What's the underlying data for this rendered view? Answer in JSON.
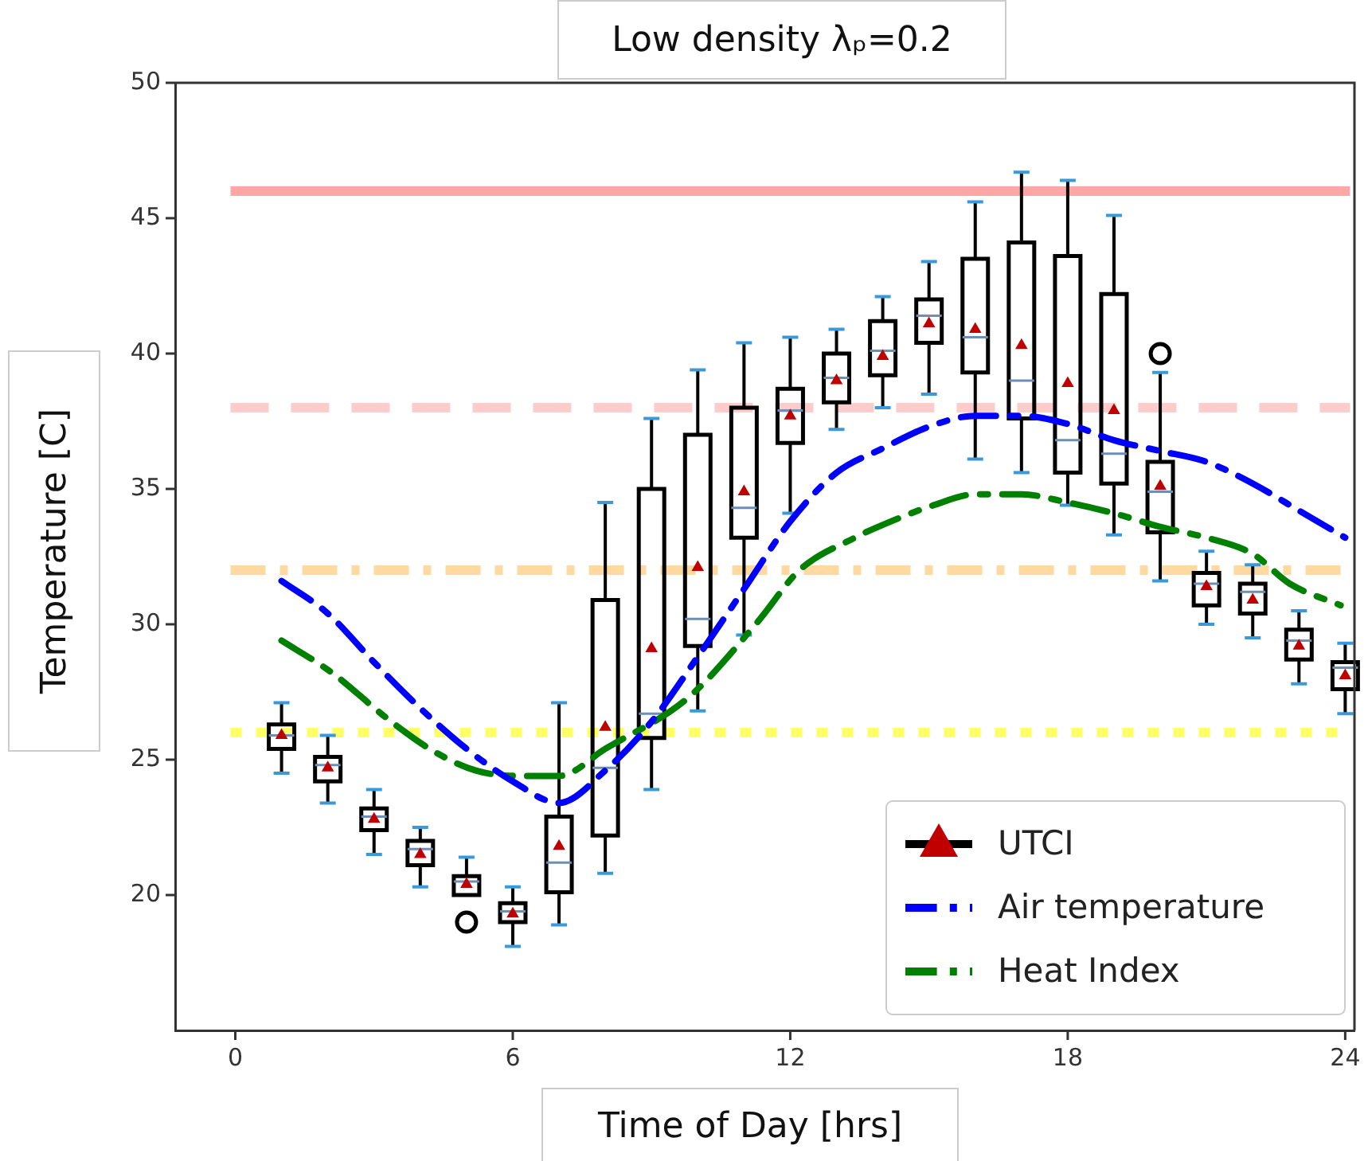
{
  "chart_data": {
    "type": "box",
    "title": "Low density λₚ=0.2",
    "xlabel": "Time of Day [hrs]",
    "ylabel": "Temperature [C]",
    "xlim": [
      -1.3,
      24.2
    ],
    "xticks": [
      0,
      6,
      12,
      18,
      24
    ],
    "ylim": [
      15,
      50
    ],
    "yticks": [
      20,
      25,
      30,
      35,
      40,
      45,
      50
    ],
    "legend": "bottom right",
    "ref_lines": [
      {
        "axis": "y",
        "value": 46,
        "color": "#ffa6a6",
        "line_style": "solid"
      },
      {
        "axis": "y",
        "value": 38,
        "color": "#ffcccc",
        "line_style": "dashed"
      },
      {
        "axis": "y",
        "value": 32,
        "color": "#ffd9a0",
        "line_style": "dashdot"
      },
      {
        "axis": "y",
        "value": 26,
        "color": "#ffff66",
        "line_style": "dotted"
      }
    ],
    "series": [
      {
        "name": "UTCI",
        "type": "box",
        "color": "#000000",
        "x": [
          1,
          2,
          3,
          4,
          5,
          6,
          7,
          8,
          9,
          10,
          11,
          12,
          13,
          14,
          15,
          16,
          17,
          18,
          19,
          20,
          21,
          22,
          23,
          24
        ],
        "boxes": [
          {
            "low": 24.5,
            "q1": 25.4,
            "median": 25.9,
            "q3": 26.3,
            "high": 27.1
          },
          {
            "low": 23.4,
            "q1": 24.2,
            "median": 24.8,
            "q3": 25.1,
            "high": 25.9
          },
          {
            "low": 21.5,
            "q1": 22.4,
            "median": 22.9,
            "q3": 23.2,
            "high": 23.9
          },
          {
            "low": 20.3,
            "q1": 21.1,
            "median": 21.7,
            "q3": 22.0,
            "high": 22.5
          },
          {
            "low": 20.0,
            "q1": 20.0,
            "median": 20.5,
            "q3": 20.7,
            "high": 21.4,
            "outliers": [
              19.0
            ]
          },
          {
            "low": 18.1,
            "q1": 19.0,
            "median": 19.4,
            "q3": 19.7,
            "high": 20.3
          },
          {
            "low": 18.9,
            "q1": 20.1,
            "median": 21.2,
            "q3": 22.9,
            "high": 27.1
          },
          {
            "low": 20.8,
            "q1": 22.2,
            "median": 24.7,
            "q3": 30.9,
            "high": 34.5
          },
          {
            "low": 23.9,
            "q1": 25.8,
            "median": 26.7,
            "q3": 35.0,
            "high": 37.6
          },
          {
            "low": 26.8,
            "q1": 29.2,
            "median": 30.2,
            "q3": 37.0,
            "high": 39.4
          },
          {
            "low": 29.6,
            "q1": 33.2,
            "median": 34.3,
            "q3": 38.0,
            "high": 40.4
          },
          {
            "low": 34.1,
            "q1": 36.7,
            "median": 37.9,
            "q3": 38.7,
            "high": 40.6
          },
          {
            "low": 37.2,
            "q1": 38.2,
            "median": 39.1,
            "q3": 40.0,
            "high": 40.9
          },
          {
            "low": 38.0,
            "q1": 39.2,
            "median": 40.1,
            "q3": 41.2,
            "high": 42.1
          },
          {
            "low": 38.5,
            "q1": 40.4,
            "median": 41.4,
            "q3": 42.0,
            "high": 43.4
          },
          {
            "low": 36.1,
            "q1": 39.3,
            "median": 40.6,
            "q3": 43.5,
            "high": 45.6
          },
          {
            "low": 35.6,
            "q1": 37.6,
            "median": 39.0,
            "q3": 44.1,
            "high": 46.7
          },
          {
            "low": 34.4,
            "q1": 35.6,
            "median": 36.8,
            "q3": 43.6,
            "high": 46.4
          },
          {
            "low": 33.3,
            "q1": 35.2,
            "median": 36.3,
            "q3": 42.2,
            "high": 45.1
          },
          {
            "low": 31.6,
            "q1": 33.4,
            "median": 34.9,
            "q3": 36.0,
            "high": 39.3,
            "outliers": [
              40.0
            ]
          },
          {
            "low": 30.0,
            "q1": 30.7,
            "median": 31.5,
            "q3": 31.9,
            "high": 32.7
          },
          {
            "low": 29.5,
            "q1": 30.4,
            "median": 31.2,
            "q3": 31.5,
            "high": 32.2
          },
          {
            "low": 27.8,
            "q1": 28.7,
            "median": 29.4,
            "q3": 29.8,
            "high": 30.5
          },
          {
            "low": 26.7,
            "q1": 27.6,
            "median": 28.4,
            "q3": 28.6,
            "high": 29.3
          }
        ]
      },
      {
        "type": "scatter",
        "color": "#c00000",
        "marker": "triangle",
        "x": [
          1,
          2,
          3,
          4,
          5,
          6,
          7,
          8,
          9,
          10,
          11,
          12,
          13,
          14,
          15,
          16,
          17,
          18,
          19,
          20,
          21,
          22,
          23,
          24
        ],
        "values": [
          25.9,
          24.7,
          22.8,
          21.5,
          20.4,
          19.3,
          21.8,
          26.2,
          29.1,
          32.1,
          34.9,
          37.7,
          39.0,
          39.9,
          41.1,
          40.9,
          40.3,
          38.9,
          37.9,
          35.1,
          31.4,
          30.9,
          29.2,
          28.1
        ]
      },
      {
        "name": "Air temperature",
        "type": "line",
        "color": "#0000ff",
        "line_style": "dashdot",
        "x": [
          1,
          2,
          3,
          4,
          5,
          6,
          7,
          8,
          9,
          10,
          11,
          12,
          13,
          14,
          15,
          16,
          17,
          18,
          19,
          20,
          21,
          22,
          23,
          24
        ],
        "values": [
          31.6,
          30.4,
          28.6,
          26.9,
          25.4,
          24.2,
          23.4,
          24.6,
          26.4,
          28.8,
          31.3,
          33.8,
          35.6,
          36.5,
          37.3,
          37.7,
          37.7,
          37.4,
          36.8,
          36.4,
          36.0,
          35.2,
          34.2,
          33.2
        ]
      },
      {
        "name": "Heat Index",
        "type": "line",
        "color": "#008000",
        "line_style": "dashdot",
        "x": [
          1,
          2.1,
          3.3,
          4.3,
          5.2,
          6.1,
          7,
          8,
          9.8,
          11.3,
          12.2,
          13.4,
          13.9,
          15.1,
          16,
          17,
          18,
          19,
          20,
          21,
          22,
          22.8,
          23.9
        ],
        "values": [
          29.4,
          28.2,
          26.5,
          25.3,
          24.6,
          24.4,
          24.4,
          25.4,
          27.3,
          30.1,
          32.0,
          33.2,
          33.6,
          34.4,
          34.8,
          34.8,
          34.5,
          34.1,
          33.6,
          33.2,
          32.6,
          31.5,
          30.7
        ]
      }
    ]
  }
}
